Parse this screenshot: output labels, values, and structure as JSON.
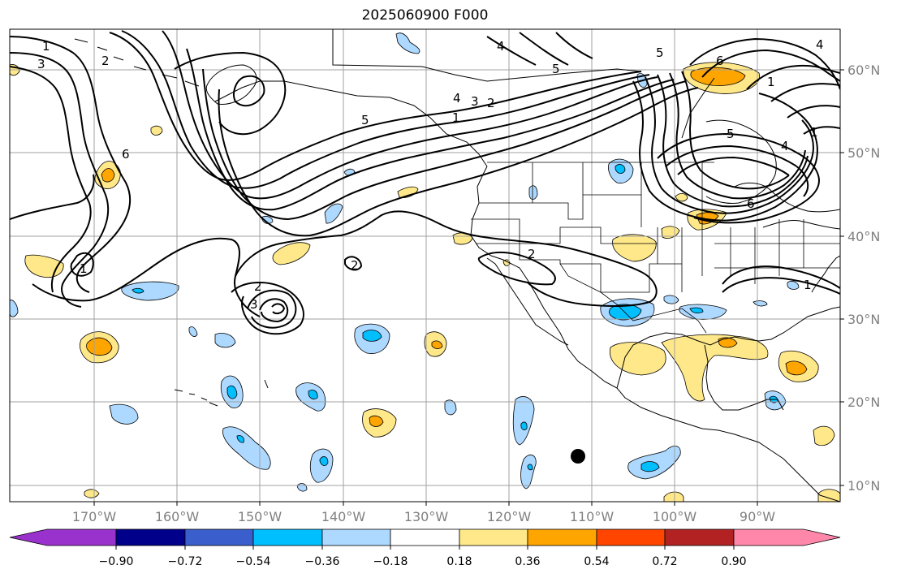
{
  "title": "2025060900 F000",
  "map": {
    "lon_labels": [
      "170°W",
      "160°W",
      "150°W",
      "140°W",
      "130°W",
      "120°W",
      "110°W",
      "100°W",
      "90°W"
    ],
    "lat_labels": [
      "60°N",
      "50°N",
      "40°N",
      "30°N",
      "20°N",
      "10°N"
    ],
    "contour_labels": [
      "1",
      "3",
      "2",
      "6",
      "5",
      "4",
      "3",
      "2",
      "1",
      "2",
      "3",
      "2",
      "1",
      "2",
      "5",
      "4",
      "6",
      "6",
      "5",
      "4",
      "1",
      "1",
      "1",
      "4",
      "5"
    ],
    "grid": true,
    "marker": "black-dot"
  },
  "colorbar": {
    "ticks": [
      "−0.90",
      "−0.72",
      "−0.54",
      "−0.36",
      "−0.18",
      "0.18",
      "0.36",
      "0.54",
      "0.72",
      "0.90"
    ],
    "colors": [
      "#9932cc",
      "#00008b",
      "#3a5fcd",
      "#00bfff",
      "#add8ff",
      "#ffffff",
      "#ffe88a",
      "#ffa500",
      "#ff4500",
      "#b22222",
      "#ff88aa"
    ]
  }
}
